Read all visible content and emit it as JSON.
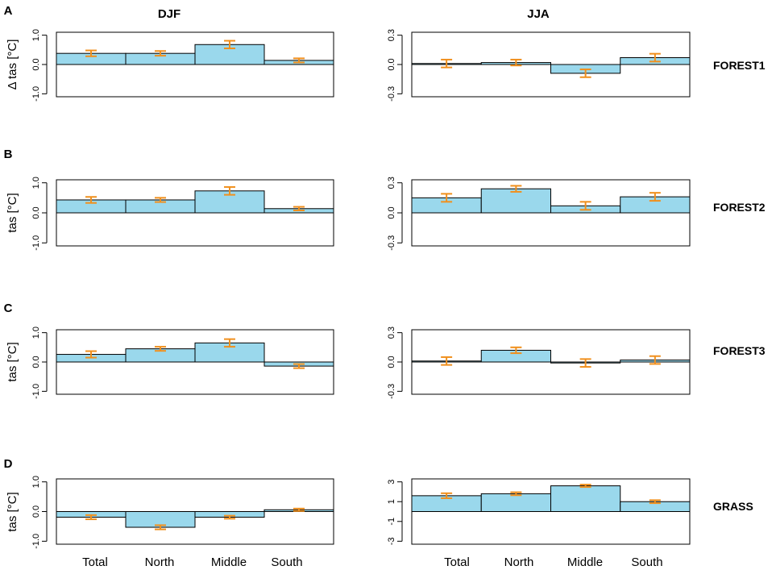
{
  "colors": {
    "bar": "#9ad8ec",
    "error": "#f0901e",
    "axis": "#000000"
  },
  "columns": [
    "DJF",
    "JJA"
  ],
  "categories_axis_label": [
    "Total",
    "North",
    "Middle",
    "South"
  ],
  "chart_data": [
    {
      "type": "bar",
      "panel": "A",
      "season": "DJF",
      "scenario": "FOREST1",
      "ylabel": "Δ tas [°C]",
      "ylim": [
        -1.1,
        1.1
      ],
      "yticks": [
        -1.0,
        0.0,
        1.0
      ],
      "ytick_labels": [
        "-1.0",
        "0.0",
        "1.0"
      ],
      "categories": [
        "Total",
        "North",
        "Middle",
        "South"
      ],
      "values": [
        0.38,
        0.38,
        0.68,
        0.14
      ],
      "err": [
        0.1,
        0.08,
        0.13,
        0.07
      ]
    },
    {
      "type": "bar",
      "panel": "A",
      "season": "JJA",
      "scenario": "FOREST1",
      "ylabel": "",
      "ylim": [
        -0.33,
        0.33
      ],
      "yticks": [
        -0.3,
        0.0,
        0.3
      ],
      "ytick_labels": [
        "-0.3",
        "0.0",
        "0.3"
      ],
      "categories": [
        "Total",
        "North",
        "Middle",
        "South"
      ],
      "values": [
        0.01,
        0.02,
        -0.09,
        0.07
      ],
      "err": [
        0.04,
        0.03,
        0.04,
        0.04
      ]
    },
    {
      "type": "bar",
      "panel": "B",
      "season": "DJF",
      "scenario": "FOREST2",
      "ylabel": "tas [°C]",
      "ylim": [
        -1.1,
        1.1
      ],
      "yticks": [
        -1.0,
        0.0,
        1.0
      ],
      "ytick_labels": [
        "-1.0",
        "0.0",
        "1.0"
      ],
      "categories": [
        "Total",
        "North",
        "Middle",
        "South"
      ],
      "values": [
        0.43,
        0.43,
        0.73,
        0.14
      ],
      "err": [
        0.1,
        0.07,
        0.13,
        0.06
      ]
    },
    {
      "type": "bar",
      "panel": "B",
      "season": "JJA",
      "scenario": "FOREST2",
      "ylabel": "",
      "ylim": [
        -0.33,
        0.33
      ],
      "yticks": [
        -0.3,
        0.0,
        0.3
      ],
      "ytick_labels": [
        "-0.3",
        "0.0",
        "0.3"
      ],
      "categories": [
        "Total",
        "North",
        "Middle",
        "South"
      ],
      "values": [
        0.15,
        0.24,
        0.07,
        0.16
      ],
      "err": [
        0.04,
        0.03,
        0.04,
        0.04
      ]
    },
    {
      "type": "bar",
      "panel": "C",
      "season": "DJF",
      "scenario": "FOREST3",
      "ylabel": "tas [°C]",
      "ylim": [
        -1.1,
        1.1
      ],
      "yticks": [
        -1.0,
        0.0,
        1.0
      ],
      "ytick_labels": [
        "-1.0",
        "0.0",
        "1.0"
      ],
      "categories": [
        "Total",
        "North",
        "Middle",
        "South"
      ],
      "values": [
        0.26,
        0.45,
        0.65,
        -0.14
      ],
      "err": [
        0.11,
        0.07,
        0.13,
        0.07
      ]
    },
    {
      "type": "bar",
      "panel": "C",
      "season": "JJA",
      "scenario": "FOREST3",
      "ylabel": "",
      "ylim": [
        -0.33,
        0.33
      ],
      "yticks": [
        -0.3,
        0.0,
        0.3
      ],
      "ytick_labels": [
        "-0.3",
        "0.0",
        "0.3"
      ],
      "categories": [
        "Total",
        "North",
        "Middle",
        "South"
      ],
      "values": [
        0.01,
        0.12,
        -0.01,
        0.02
      ],
      "err": [
        0.04,
        0.03,
        0.04,
        0.04
      ]
    },
    {
      "type": "bar",
      "panel": "D",
      "season": "DJF",
      "scenario": "GRASS",
      "ylabel": "tas [°C]",
      "ylim": [
        -1.1,
        1.1
      ],
      "yticks": [
        -1.0,
        0.0,
        1.0
      ],
      "ytick_labels": [
        "-1.0",
        "0.0",
        "1.0"
      ],
      "categories": [
        "Total",
        "North",
        "Middle",
        "South"
      ],
      "values": [
        -0.19,
        -0.53,
        -0.19,
        0.06
      ],
      "err": [
        0.07,
        0.07,
        0.05,
        0.04
      ]
    },
    {
      "type": "bar",
      "panel": "D",
      "season": "JJA",
      "scenario": "GRASS",
      "ylabel": "",
      "ylim": [
        -3.3,
        3.3
      ],
      "yticks": [
        -3,
        -1,
        1,
        3
      ],
      "ytick_labels": [
        "-3",
        "-1",
        "1",
        "3"
      ],
      "categories": [
        "Total",
        "North",
        "Middle",
        "South"
      ],
      "values": [
        1.6,
        1.8,
        2.6,
        1.0
      ],
      "err": [
        0.25,
        0.15,
        0.12,
        0.15
      ]
    }
  ]
}
